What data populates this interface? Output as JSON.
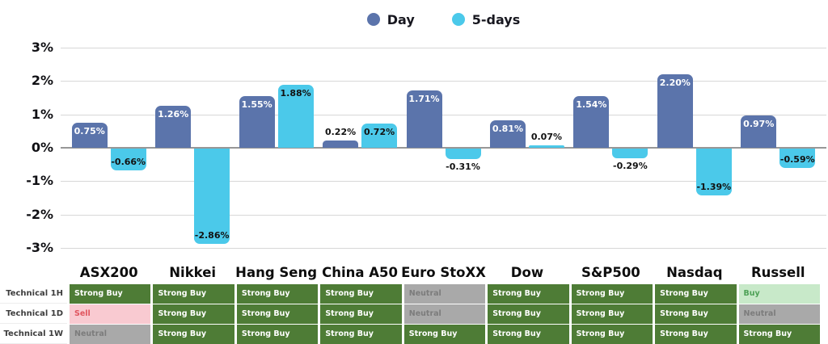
{
  "chart_data": {
    "type": "bar",
    "title": "",
    "categories": [
      "ASX200",
      "Nikkei",
      "Hang Seng",
      "China A50",
      "Euro StoXX",
      "Dow",
      "S&P500",
      "Nasdaq",
      "Russell"
    ],
    "series": [
      {
        "name": "Day",
        "color": "#5b74ab",
        "values": [
          0.75,
          1.26,
          1.55,
          0.22,
          1.71,
          0.81,
          1.54,
          2.2,
          0.97
        ],
        "labels": [
          "0.75%",
          "1.26%",
          "1.55%",
          "0.22%",
          "1.71%",
          "0.81%",
          "1.54%",
          "2.20%",
          "0.97%"
        ]
      },
      {
        "name": "5-days",
        "color": "#4bc9ea",
        "values": [
          -0.66,
          -2.86,
          1.88,
          0.72,
          -0.31,
          0.07,
          -0.29,
          -1.39,
          -0.59
        ],
        "labels": [
          "-0.66%",
          "-2.86%",
          "1.88%",
          "0.72%",
          "-0.31%",
          "0.07%",
          "-0.29%",
          "-1.39%",
          "-0.59%"
        ]
      }
    ],
    "ylim": [
      -3,
      3
    ],
    "yticks": [
      {
        "value": 3,
        "label": "3%"
      },
      {
        "value": 2,
        "label": "2%"
      },
      {
        "value": 1,
        "label": "1%"
      },
      {
        "value": 0,
        "label": "0%"
      },
      {
        "value": -1,
        "label": "-1%"
      },
      {
        "value": -2,
        "label": "-2%"
      },
      {
        "value": -3,
        "label": "-3%"
      }
    ],
    "grid": true,
    "legend_position": "top-center",
    "inside_label_threshold": 0.5,
    "inside_label_color_day": "#ffffff",
    "outside_label_color": "#121212"
  },
  "technical_table": {
    "row_labels": [
      "Technical 1H",
      "Technical 1D",
      "Technical 1W"
    ],
    "columns": [
      "ASX200",
      "Nikkei",
      "Hang Seng",
      "China A50",
      "Euro StoXX",
      "Dow",
      "S&P500",
      "Nasdaq",
      "Russell"
    ],
    "rows": [
      [
        {
          "label": "Strong Buy",
          "status": "strong_buy"
        },
        {
          "label": "Strong Buy",
          "status": "strong_buy"
        },
        {
          "label": "Strong Buy",
          "status": "strong_buy"
        },
        {
          "label": "Strong Buy",
          "status": "strong_buy"
        },
        {
          "label": "Neutral",
          "status": "neutral"
        },
        {
          "label": "Strong Buy",
          "status": "strong_buy"
        },
        {
          "label": "Strong Buy",
          "status": "strong_buy"
        },
        {
          "label": "Strong Buy",
          "status": "strong_buy"
        },
        {
          "label": "Buy",
          "status": "buy"
        }
      ],
      [
        {
          "label": "Sell",
          "status": "sell"
        },
        {
          "label": "Strong Buy",
          "status": "strong_buy"
        },
        {
          "label": "Strong Buy",
          "status": "strong_buy"
        },
        {
          "label": "Strong Buy",
          "status": "strong_buy"
        },
        {
          "label": "Neutral",
          "status": "neutral"
        },
        {
          "label": "Strong Buy",
          "status": "strong_buy"
        },
        {
          "label": "Strong Buy",
          "status": "strong_buy"
        },
        {
          "label": "Strong Buy",
          "status": "strong_buy"
        },
        {
          "label": "Neutral",
          "status": "neutral"
        }
      ],
      [
        {
          "label": "Neutral",
          "status": "neutral"
        },
        {
          "label": "Strong Buy",
          "status": "strong_buy"
        },
        {
          "label": "Strong Buy",
          "status": "strong_buy"
        },
        {
          "label": "Strong Buy",
          "status": "strong_buy"
        },
        {
          "label": "Strong Buy",
          "status": "strong_buy"
        },
        {
          "label": "Strong Buy",
          "status": "strong_buy"
        },
        {
          "label": "Strong Buy",
          "status": "strong_buy"
        },
        {
          "label": "Strong Buy",
          "status": "strong_buy"
        },
        {
          "label": "Strong Buy",
          "status": "strong_buy"
        }
      ]
    ]
  },
  "status_colors": {
    "strong_buy": {
      "bg": "#4e7c36",
      "text": "#ffffff"
    },
    "buy": {
      "bg": "#c8e9c9",
      "text": "#4da156"
    },
    "neutral": {
      "bg": "#a9a9a9",
      "text": "#7c7c7c"
    },
    "sell": {
      "bg": "#f9cad1",
      "text": "#e0555f"
    }
  }
}
